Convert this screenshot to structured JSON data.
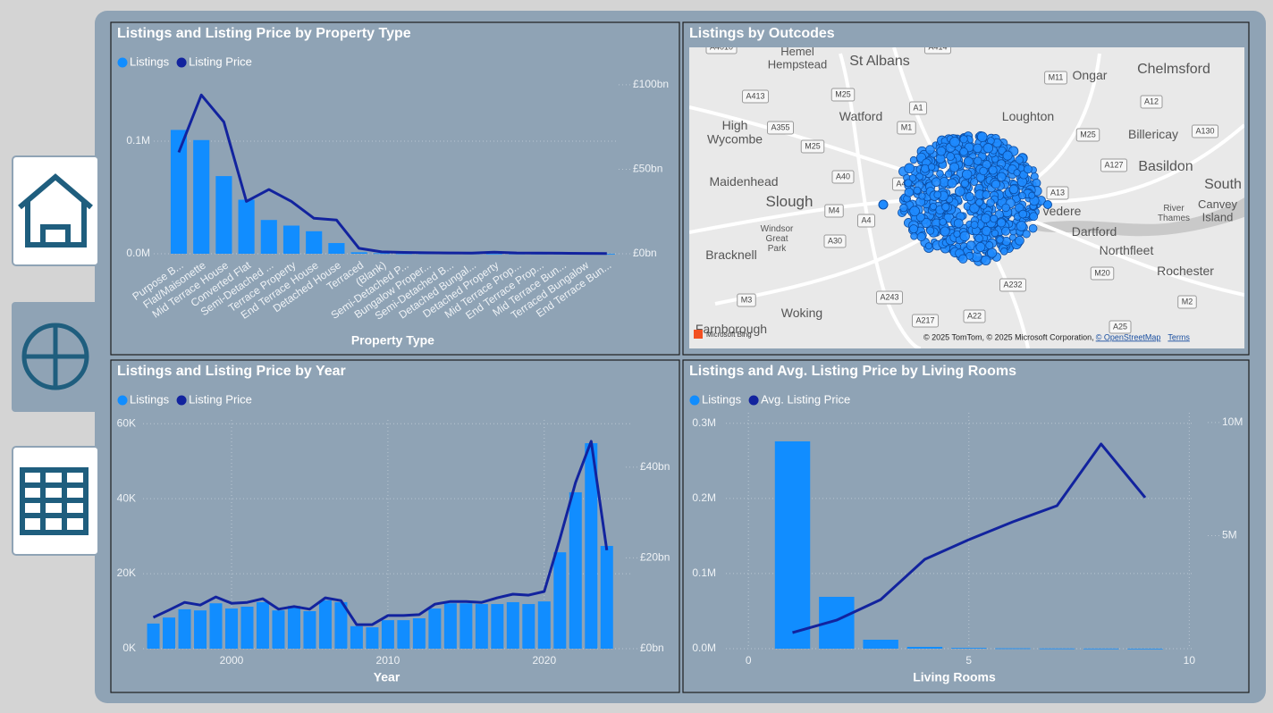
{
  "chart_data": [
    {
      "type": "combo",
      "title": "Listings and Listing Price by Property Type",
      "legend": "top-left",
      "grid": true,
      "x_title": "Property Type",
      "categories": [
        "Purpose B...",
        "Flat/Maisonette",
        "Mid Terrace House",
        "Converted Flat",
        "Semi-Detached ...",
        "Terrace Property",
        "End Terrace House",
        "Detached House",
        "Terraced",
        "(Blank)",
        "Semi-Detached P...",
        "Bungalow Proper...",
        "Semi-Detached B...",
        "Detached Bungal...",
        "Detached Property",
        "Mid Terrace Prop...",
        "End Terrace Prop...",
        "Mid Terrace Bun...",
        "Terraced Bungalow",
        "End Terrace Bun..."
      ],
      "series": [
        {
          "name": "Listings",
          "type": "bar",
          "color": "#118dff",
          "values": [
            110000,
            101000,
            69000,
            48000,
            30000,
            25000,
            20000,
            9500,
            1300,
            500,
            300,
            250,
            200,
            150,
            120,
            100,
            80,
            60,
            40,
            20
          ]
        },
        {
          "name": "Listing Price",
          "type": "line",
          "axis": "y2",
          "color": "#12239e",
          "values": [
            60,
            94,
            78,
            31,
            38,
            31,
            21,
            20,
            3.2,
            1.1,
            0.8,
            0.6,
            0.5,
            0.4,
            0.9,
            0.5,
            0.4,
            0.3,
            0.2,
            0.1
          ]
        }
      ],
      "ylim": [
        0,
        154000
      ],
      "yticks": [
        {
          "value": 0,
          "label": "0.0M"
        },
        {
          "value": 100000,
          "label": "0.1M"
        }
      ],
      "y2lim": [
        0,
        102.6
      ],
      "y2ticks": [
        {
          "value": 0,
          "label": "£0bn"
        },
        {
          "value": 50,
          "label": "£50bn"
        },
        {
          "value": 100,
          "label": "£100bn"
        }
      ]
    },
    {
      "type": "map",
      "title": "Listings by Outcodes",
      "places": [
        [
          "Hemel",
          "Hempstead"
        ],
        [
          "St Albans"
        ],
        [
          "Ongar"
        ],
        [
          "Chelmsford"
        ],
        [
          "High",
          "Wycombe"
        ],
        [
          "Watford"
        ],
        [
          "Loughton"
        ],
        [
          "Billericay"
        ],
        [
          "Basildon"
        ],
        [
          "South"
        ],
        [
          "Maidenhead"
        ],
        [
          "Slough"
        ],
        [
          "Canvey",
          "Island"
        ],
        [
          "River",
          "Thames"
        ],
        [
          "Windsor",
          "Great",
          "Park"
        ],
        [
          "vedere"
        ],
        [
          "Dartford"
        ],
        [
          "Northfleet"
        ],
        [
          "Bracknell"
        ],
        [
          "Rochester"
        ],
        [
          "Woking"
        ],
        [
          "Farnborough"
        ]
      ],
      "roads": [
        "A4010",
        "A414",
        "A413",
        "M25",
        "M11",
        "A12",
        "A1",
        "A355",
        "M1",
        "M25",
        "A130",
        "M25",
        "A127",
        "A40",
        "A406",
        "A13",
        "M4",
        "A4",
        "A30",
        "M20",
        "A232",
        "M3",
        "A243",
        "A217",
        "A22",
        "A25",
        "M2"
      ],
      "attribution": [
        "© 2025 TomTom, © 2025 Microsoft Corporation, ",
        "© OpenStreetMap",
        "Terms"
      ],
      "provider": "Microsoft Bing"
    },
    {
      "type": "combo",
      "title": "Listings and Listing Price by Year",
      "legend": "top-left",
      "grid": true,
      "x_title": "Year",
      "x": [
        1995,
        1996,
        1997,
        1998,
        1999,
        2000,
        2001,
        2002,
        2003,
        2004,
        2005,
        2006,
        2007,
        2008,
        2009,
        2010,
        2011,
        2012,
        2013,
        2014,
        2015,
        2016,
        2017,
        2018,
        2019,
        2020,
        2021,
        2022,
        2023,
        2024
      ],
      "series": [
        {
          "name": "Listings",
          "type": "bar",
          "color": "#118dff",
          "values": [
            6700,
            8300,
            10500,
            10200,
            12100,
            10700,
            11200,
            12400,
            10200,
            11400,
            10000,
            12900,
            12400,
            6000,
            5700,
            7600,
            7600,
            8100,
            10700,
            12100,
            12100,
            11900,
            11900,
            12400,
            11900,
            12600,
            25700,
            41700,
            54800,
            27400
          ]
        },
        {
          "name": "Listing Price",
          "type": "line",
          "axis": "y2",
          "color": "#12239e",
          "values": [
            6.9,
            8.5,
            10.2,
            9.6,
            11.4,
            10.0,
            10.2,
            11.0,
            8.7,
            9.3,
            8.7,
            11.2,
            10.6,
            5.3,
            5.3,
            7.3,
            7.3,
            7.5,
            9.8,
            10.4,
            10.4,
            10.2,
            11.2,
            12.0,
            11.8,
            12.6,
            24.2,
            36.6,
            45.7,
            21.7
          ]
        }
      ],
      "xlim": [
        1994.34,
        2025.5
      ],
      "xticks": [
        2000,
        2010,
        2020
      ],
      "ylim": [
        0,
        61000
      ],
      "yticks": [
        {
          "value": 0,
          "label": "0K"
        },
        {
          "value": 20000,
          "label": "20K"
        },
        {
          "value": 40000,
          "label": "40K"
        },
        {
          "value": 60000,
          "label": "60K"
        }
      ],
      "y2lim": [
        0,
        50.4
      ],
      "y2ticks": [
        {
          "value": 0,
          "label": "£0bn"
        },
        {
          "value": 20,
          "label": "£20bn"
        },
        {
          "value": 40,
          "label": "£40bn"
        }
      ]
    },
    {
      "type": "combo",
      "title": "Listings and Avg. Listing Price by Living Rooms",
      "legend": "top-left",
      "grid": true,
      "x_title": "Living Rooms",
      "x": [
        1,
        2,
        3,
        4,
        5,
        6,
        7,
        8,
        9
      ],
      "series": [
        {
          "name": "Listings",
          "type": "bar",
          "color": "#118dff",
          "values": [
            276000,
            69000,
            11900,
            2400,
            1000,
            500,
            300,
            200,
            100
          ]
        },
        {
          "name": "Avg. Listing Price",
          "type": "line",
          "axis": "y2",
          "color": "#12239e",
          "values": [
            710000,
            1260000,
            2170000,
            3950000,
            4820000,
            5610000,
            6320000,
            9050000,
            6680000
          ]
        }
      ],
      "xlim": [
        -1.16,
        10.5
      ],
      "xticks": [
        0,
        5,
        10
      ],
      "ylim": [
        0,
        314000
      ],
      "yticks": [
        {
          "value": 0,
          "label": "0.0M"
        },
        {
          "value": 100000,
          "label": "0.1M"
        },
        {
          "value": 200000,
          "label": "0.2M"
        },
        {
          "value": 300000,
          "label": "0.3M"
        }
      ],
      "y2lim": [
        0,
        10430000
      ],
      "y2ticks": [
        {
          "value": 5000000,
          "label": "5M"
        },
        {
          "value": 10000000,
          "label": "10M"
        }
      ]
    }
  ]
}
